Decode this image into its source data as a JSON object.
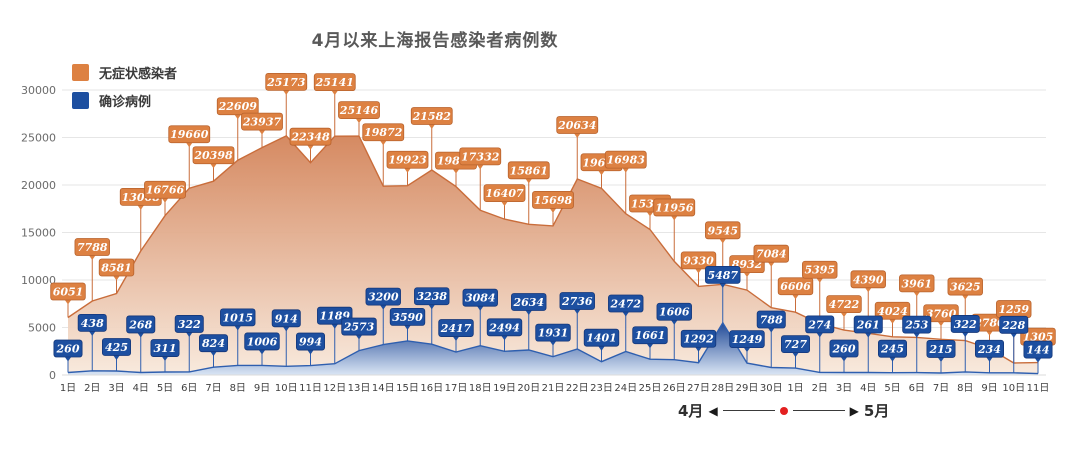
{
  "title": "4月以来上海报告感染者病例数",
  "legend": [
    {
      "label": "无症状感染者",
      "color": "#DD8142"
    },
    {
      "label": "确诊病例",
      "color": "#1D4FA0"
    }
  ],
  "footer": {
    "left_label": "4月",
    "right_label": "5月",
    "left_arrow": "◀",
    "right_arrow": "▶",
    "dot_color": "#E32020"
  },
  "chart_data": {
    "type": "area",
    "title": "4月以来上海报告感染者病例数",
    "xlabel": "",
    "ylabel": "",
    "ylim": [
      0,
      30000
    ],
    "yticks": [
      0,
      5000,
      10000,
      15000,
      20000,
      25000,
      30000
    ],
    "grid": "horizontal",
    "legend_position": "top-left",
    "categories": [
      "1日",
      "2日",
      "3日",
      "4日",
      "5日",
      "6日",
      "7日",
      "8日",
      "9日",
      "10日",
      "11日",
      "12日",
      "13日",
      "14日",
      "15日",
      "16日",
      "17日",
      "18日",
      "19日",
      "20日",
      "21日",
      "22日",
      "23日",
      "24日",
      "25日",
      "26日",
      "27日",
      "28日",
      "29日",
      "30日",
      "1日",
      "2日",
      "3日",
      "4日",
      "5日",
      "6日",
      "7日",
      "8日",
      "9日",
      "10日",
      "11日"
    ],
    "series": [
      {
        "name": "无症状感染者",
        "tag_fill": "#DD8142",
        "tag_stroke": "#B8622C",
        "line_color": "#C96D3B",
        "area_top": "#CC7040",
        "area_bottom": "#F8E9DC",
        "values": [
          6051,
          7788,
          8581,
          13068,
          16766,
          19660,
          20398,
          22609,
          23937,
          25173,
          22348,
          25141,
          25146,
          19872,
          19923,
          21582,
          19831,
          17332,
          16407,
          15861,
          15698,
          20634,
          19657,
          16983,
          15319,
          11956,
          9330,
          9545,
          8932,
          7084,
          6606,
          5395,
          4722,
          4390,
          4024,
          3961,
          3760,
          3625,
          2780,
          1259,
          1305
        ]
      },
      {
        "name": "确诊病例",
        "tag_fill": "#1D4FA0",
        "tag_stroke": "#14377A",
        "line_color": "#2F5FAF",
        "area_top": "#1B4696",
        "area_bottom": "#CJDPLACEHOLDER",
        "values": [
          260,
          438,
          425,
          268,
          311,
          322,
          824,
          1015,
          1006,
          914,
          994,
          1189,
          2573,
          3200,
          3590,
          3238,
          2417,
          3084,
          2494,
          2634,
          1931,
          2736,
          1401,
          2472,
          1661,
          1606,
          1292,
          5487,
          1249,
          788,
          727,
          274,
          260,
          261,
          245,
          253,
          215,
          322,
          234,
          228,
          144
        ]
      }
    ]
  }
}
